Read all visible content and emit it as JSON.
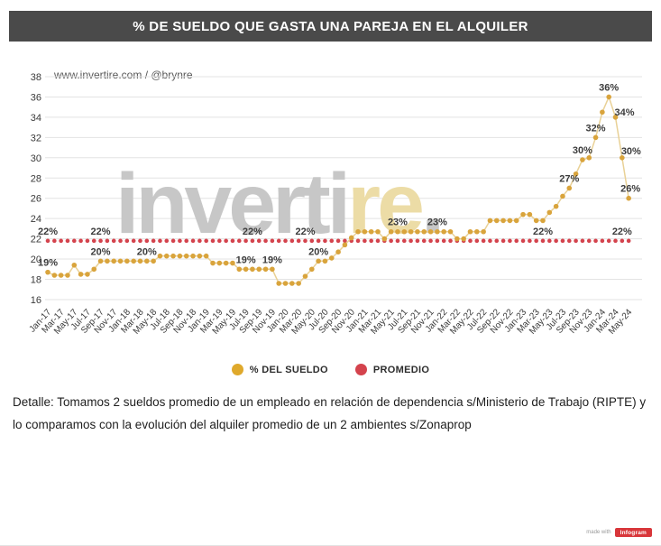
{
  "header": {
    "title": "% DE SUELDO QUE GASTA UNA PAREJA EN EL ALQUILER"
  },
  "source_line": "www.invertire.com / @brynre",
  "watermark": {
    "text_gray": "inverti",
    "text_accent": "re",
    "text_dot": ".",
    "color_gray": "#c7c7c7",
    "color_accent": "#ecdca6"
  },
  "legend": [
    {
      "label": "% DEL SUELDO",
      "color": "#dfa92c"
    },
    {
      "label": "PROMEDIO",
      "color": "#d4434d"
    }
  ],
  "detail_text": "Detalle: Tomamos 2 sueldos promedio de un empleado en relación de dependencia s/Ministerio de Trabajo (RIPTE) y lo comparamos con la evolución del alquiler promedio de un 2 ambientes s/Zonaprop",
  "footer": {
    "made_with": "made with",
    "badge": "Infogram"
  },
  "chart_data": {
    "type": "line",
    "title": "% DE SUELDO QUE GASTA UNA PAREJA EN EL ALQUILER",
    "ylim": [
      16,
      38
    ],
    "ytick_step": 2,
    "xtick_every": 2,
    "grid": true,
    "legend_position": "bottom",
    "grid_color": "#e3e3e3",
    "axis_text_color": "#3a3a3a",
    "data_label_color": "#3b3b3b",
    "x": [
      "Jan-17",
      "Feb-17",
      "Mar-17",
      "Apr-17",
      "May-17",
      "Jun-17",
      "Jul-17",
      "Aug-17",
      "Sep-17",
      "Oct-17",
      "Nov-17",
      "Dec-17",
      "Jan-18",
      "Feb-18",
      "Mar-18",
      "Apr-18",
      "May-18",
      "Jun-18",
      "Jul-18",
      "Aug-18",
      "Sep-18",
      "Oct-18",
      "Nov-18",
      "Dec-18",
      "Jan-19",
      "Feb-19",
      "Mar-19",
      "Apr-19",
      "May-19",
      "Jun-19",
      "Jul-19",
      "Aug-19",
      "Sep-19",
      "Oct-19",
      "Nov-19",
      "Dec-19",
      "Jan-20",
      "Feb-20",
      "Mar-20",
      "Apr-20",
      "May-20",
      "Jun-20",
      "Jul-20",
      "Aug-20",
      "Sep-20",
      "Oct-20",
      "Nov-20",
      "Dec-20",
      "Jan-21",
      "Feb-21",
      "Mar-21",
      "Apr-21",
      "May-21",
      "Jun-21",
      "Jul-21",
      "Aug-21",
      "Sep-21",
      "Oct-21",
      "Nov-21",
      "Dec-21",
      "Jan-22",
      "Feb-22",
      "Mar-22",
      "Apr-22",
      "May-22",
      "Jun-22",
      "Jul-22",
      "Aug-22",
      "Sep-22",
      "Oct-22",
      "Nov-22",
      "Dec-22",
      "Jan-23",
      "Feb-23",
      "Mar-23",
      "Apr-23",
      "May-23",
      "Jun-23",
      "Jul-23",
      "Aug-23",
      "Sep-23",
      "Oct-23",
      "Nov-23",
      "Dec-23",
      "Jan-24",
      "Feb-24",
      "Mar-24",
      "Apr-24",
      "May-24"
    ],
    "series": [
      {
        "name": "% DEL SUELDO",
        "dot_color": "#d9a43c",
        "line_color": "#e9d196",
        "values": [
          18.7,
          18.4,
          18.4,
          18.4,
          19.4,
          18.5,
          18.5,
          19.0,
          19.8,
          19.8,
          19.8,
          19.8,
          19.8,
          19.8,
          19.8,
          19.8,
          19.8,
          20.3,
          20.3,
          20.3,
          20.3,
          20.3,
          20.3,
          20.3,
          20.3,
          19.6,
          19.6,
          19.6,
          19.6,
          19.0,
          19.0,
          19.0,
          19.0,
          19.0,
          19.0,
          17.6,
          17.6,
          17.6,
          17.6,
          18.3,
          19.0,
          19.8,
          19.8,
          20.1,
          20.7,
          21.4,
          22.1,
          22.7,
          22.7,
          22.7,
          22.7,
          22.0,
          22.7,
          22.7,
          22.7,
          22.7,
          22.7,
          22.7,
          22.7,
          22.7,
          22.7,
          22.7,
          22.0,
          22.0,
          22.7,
          22.7,
          22.7,
          23.8,
          23.8,
          23.8,
          23.8,
          23.8,
          24.4,
          24.4,
          23.8,
          23.8,
          24.6,
          25.2,
          26.2,
          27.0,
          28.4,
          29.8,
          30.0,
          32.0,
          34.5,
          36.0,
          34.0,
          30.0,
          26.0
        ],
        "point_labels": [
          {
            "month": "Jan-17",
            "text": "19%"
          },
          {
            "month": "Sep-17",
            "text": "20%"
          },
          {
            "month": "Apr-18",
            "text": "20%"
          },
          {
            "month": "Jul-19",
            "text": "19%"
          },
          {
            "month": "Nov-19",
            "text": "19%"
          },
          {
            "month": "Jun-20",
            "text": "20%"
          },
          {
            "month": "Jun-21",
            "text": "23%"
          },
          {
            "month": "Dec-21",
            "text": "23%"
          },
          {
            "month": "Aug-23",
            "text": "27%"
          },
          {
            "month": "Oct-23",
            "text": "30%"
          },
          {
            "month": "Dec-23",
            "text": "32%"
          },
          {
            "month": "Feb-24",
            "text": "36%"
          },
          {
            "month": "Mar-24",
            "text": "34%",
            "dx": 10,
            "dy": -2
          },
          {
            "month": "Apr-24",
            "text": "30%",
            "dx": 10,
            "dy": -4
          },
          {
            "month": "May-24",
            "text": "26%",
            "dx": 2,
            "dy": -7
          }
        ]
      },
      {
        "name": "PROMEDIO",
        "type": "constant",
        "dot_color": "#d4434d",
        "value": 21.8,
        "display_label": "22%",
        "label_months": [
          "Jan-17",
          "Sep-17",
          "Aug-19",
          "Apr-20",
          "Apr-23",
          "Apr-24"
        ]
      }
    ]
  }
}
